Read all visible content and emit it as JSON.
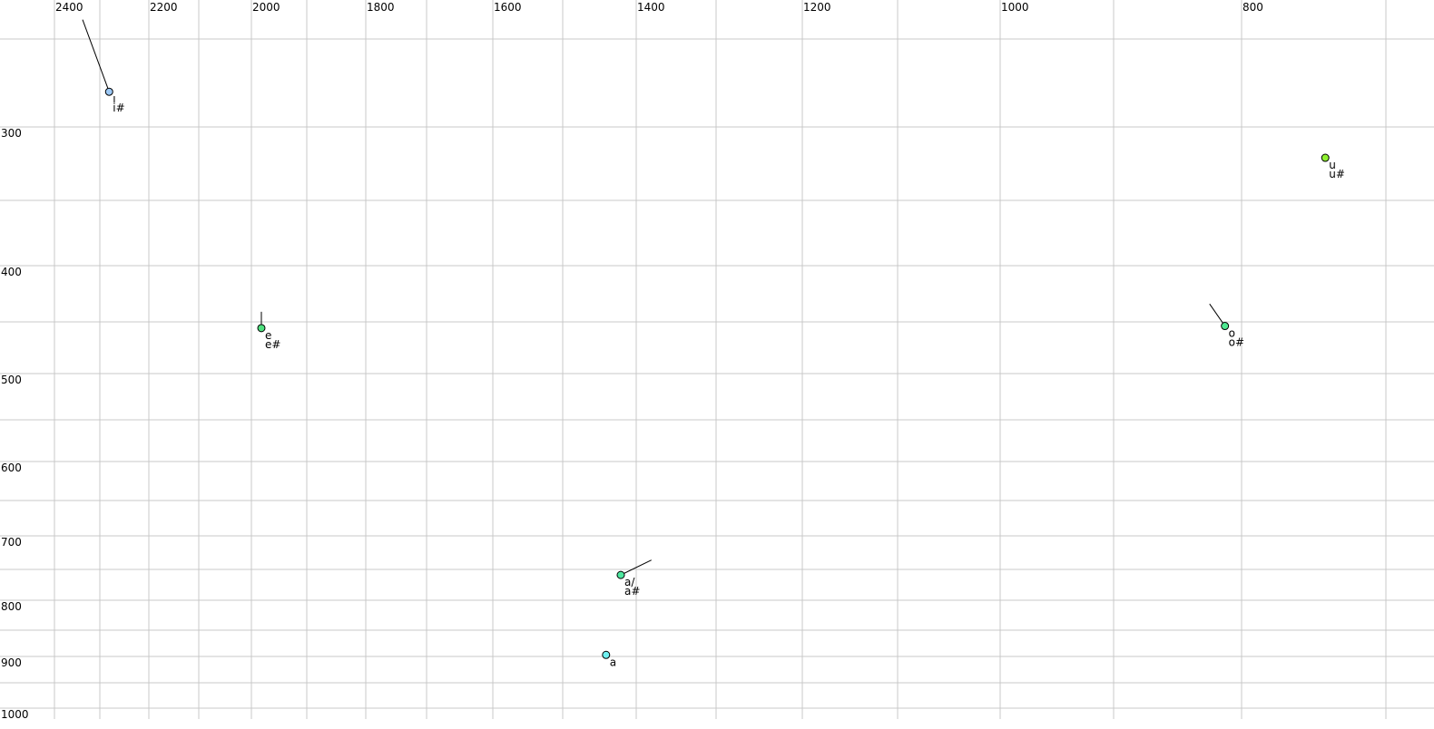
{
  "chart_data": {
    "type": "scatter",
    "title": "",
    "xlabel": "",
    "ylabel": "",
    "x_axis_reversed": true,
    "y_axis_reversed": true,
    "x_scale": "nonlinear (auditory-like)",
    "xlim": [
      2400,
      700
    ],
    "ylim": [
      250,
      1000
    ],
    "grid": true,
    "x_ticks": [
      2400,
      2200,
      2000,
      1800,
      1600,
      1400,
      1200,
      1000,
      800
    ],
    "y_ticks": [
      300,
      400,
      500,
      600,
      700,
      800,
      900,
      1000
    ],
    "x_tick_labels": [
      "2400",
      "2200",
      "2000",
      "1800",
      "1600",
      "1400",
      "1200",
      "1000",
      "800"
    ],
    "y_tick_labels": [
      "300",
      "400",
      "500",
      "600",
      "700",
      "800",
      "900",
      "1000"
    ],
    "points": [
      {
        "labels": [
          "ı",
          "i#"
        ],
        "f2": 2281,
        "f1": 280,
        "color": "#9cc8f5",
        "trajectory_from": {
          "f2": 2338,
          "f1": 239
        }
      },
      {
        "labels": [
          "e",
          "e#"
        ],
        "f2": 1982,
        "f1": 456,
        "color": "#4ee07e",
        "trajectory_from": {
          "f2": 1982,
          "f1": 441
        }
      },
      {
        "labels": [
          "a/",
          "a#"
        ],
        "f2": 1421,
        "f1": 759,
        "color": "#4ee8a0",
        "trajectory_from": {
          "f2": 1381,
          "f1": 736
        }
      },
      {
        "labels": [
          "a"
        ],
        "f2": 1441,
        "f1": 897,
        "color": "#6ff0f0",
        "trajectory_from": null
      },
      {
        "labels": [
          "o",
          "o#"
        ],
        "f2": 813,
        "f1": 454,
        "color": "#4ee890",
        "trajectory_from": {
          "f2": 825,
          "f1": 434
        }
      },
      {
        "labels": [
          "u",
          "u#"
        ],
        "f2": 742,
        "f1": 321,
        "color": "#8ef030",
        "trajectory_from": null
      }
    ]
  }
}
